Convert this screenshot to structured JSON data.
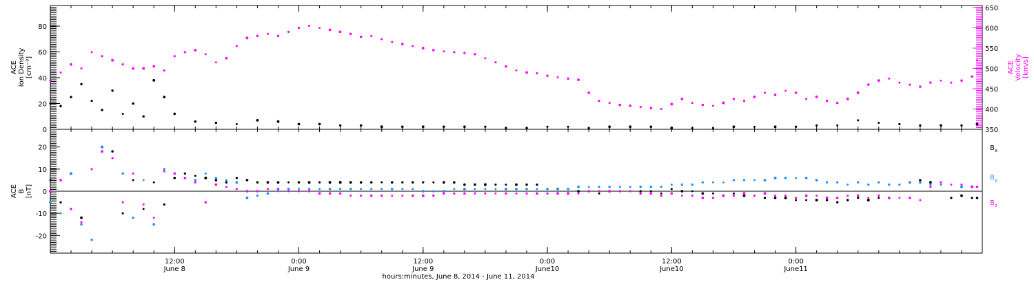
{
  "chart_data": [
    {
      "type": "scatter",
      "panel": "top",
      "y_left_label": [
        "ACE",
        "Ion Density",
        "[cm⁻³]"
      ],
      "y_right_label": [
        "ACE",
        "Velocity",
        "[km/s]"
      ],
      "y_left_range": [
        0,
        96
      ],
      "y_left_ticks": [
        "0",
        "20",
        "40",
        "60",
        "80"
      ],
      "y_right_range": [
        350,
        655
      ],
      "y_right_ticks": [
        "350",
        "400",
        "450",
        "500",
        "550",
        "600",
        "650"
      ],
      "x_range_hours": [
        0,
        90
      ],
      "series": [
        {
          "color": "#000000",
          "axis": "left",
          "x": [
            0,
            1,
            2,
            3,
            4,
            5,
            6,
            7,
            8,
            9,
            10,
            11,
            12,
            14,
            16,
            18,
            20,
            22,
            24,
            26,
            28,
            30,
            32,
            34,
            36,
            38,
            40,
            42,
            44,
            46,
            48,
            50,
            52,
            54,
            56,
            58,
            60,
            62,
            64,
            66,
            68,
            70,
            72,
            74,
            76,
            78,
            80,
            82,
            84,
            86,
            88,
            89.5
          ],
          "y": [
            20,
            18,
            25,
            35,
            22,
            15,
            30,
            12,
            20,
            10,
            38,
            25,
            12,
            6,
            5,
            4,
            7,
            6,
            4,
            4,
            3,
            3,
            2,
            2,
            2,
            2,
            2,
            2,
            1,
            1,
            2,
            2,
            1,
            2,
            2,
            2,
            1,
            1,
            1,
            2,
            2,
            2,
            2,
            3,
            3,
            7,
            5,
            4,
            3,
            3,
            3,
            4
          ]
        },
        {
          "color": "#ff00ff",
          "axis": "right",
          "x": [
            0,
            1,
            2,
            3,
            4,
            5,
            6,
            7,
            8,
            9,
            10,
            11,
            12,
            13,
            14,
            15,
            16,
            17,
            18,
            19,
            20,
            21,
            22,
            23,
            24,
            25,
            26,
            27,
            28,
            29,
            30,
            31,
            32,
            33,
            34,
            35,
            36,
            37,
            38,
            39,
            40,
            41,
            42,
            43,
            44,
            45,
            46,
            47,
            48,
            49,
            50,
            51,
            52,
            53,
            54,
            55,
            56,
            57,
            58,
            59,
            60,
            61,
            62,
            63,
            64,
            65,
            66,
            67,
            68,
            69,
            70,
            71,
            72,
            73,
            74,
            75,
            76,
            77,
            78,
            79,
            80,
            81,
            82,
            83,
            84,
            85,
            86,
            87,
            88,
            89,
            89.5
          ],
          "y": [
            470,
            490,
            510,
            500,
            540,
            530,
            520,
            510,
            500,
            500,
            505,
            495,
            530,
            540,
            545,
            535,
            515,
            525,
            555,
            575,
            580,
            585,
            580,
            590,
            600,
            605,
            600,
            595,
            590,
            585,
            578,
            580,
            572,
            565,
            560,
            555,
            550,
            545,
            542,
            540,
            538,
            535,
            525,
            515,
            505,
            495,
            490,
            488,
            482,
            478,
            475,
            472,
            440,
            420,
            415,
            410,
            408,
            405,
            402,
            400,
            412,
            425,
            415,
            410,
            408,
            415,
            425,
            420,
            430,
            440,
            435,
            445,
            440,
            425,
            430,
            420,
            415,
            425,
            440,
            460,
            470,
            475,
            465,
            460,
            455,
            465,
            470,
            465,
            470,
            480,
            520
          ]
        }
      ]
    },
    {
      "type": "scatter",
      "panel": "bottom",
      "y_label": [
        "ACE",
        "B",
        "[nT]"
      ],
      "y_range": [
        -28,
        28
      ],
      "y_ticks": [
        "-20",
        "-10",
        "0",
        "10",
        "20"
      ],
      "x_range_hours": [
        0,
        90
      ],
      "zero_line": true,
      "legend_side": "right",
      "series": [
        {
          "name": "Bx",
          "color": "#000000",
          "x": [
            0,
            1,
            2,
            3,
            4,
            5,
            6,
            7,
            8,
            9,
            10,
            11,
            12,
            13,
            14,
            15,
            16,
            17,
            18,
            19,
            20,
            21,
            22,
            23,
            24,
            25,
            26,
            27,
            28,
            29,
            30,
            31,
            32,
            33,
            34,
            35,
            36,
            37,
            38,
            39,
            40,
            41,
            42,
            43,
            44,
            45,
            46,
            47,
            48,
            49,
            50,
            51,
            52,
            53,
            54,
            55,
            56,
            57,
            58,
            59,
            60,
            61,
            62,
            63,
            64,
            65,
            66,
            67,
            68,
            69,
            70,
            71,
            72,
            73,
            74,
            75,
            76,
            77,
            78,
            79,
            80,
            81,
            82,
            83,
            84,
            85,
            86,
            87,
            88,
            89,
            89.5
          ],
          "y": [
            5,
            -5,
            8,
            -12,
            10,
            20,
            18,
            -10,
            5,
            -8,
            4,
            -6,
            6,
            8,
            7,
            6,
            5,
            4,
            6,
            5,
            4,
            4,
            4,
            4,
            4,
            4,
            4,
            4,
            4,
            4,
            4,
            4,
            4,
            4,
            4,
            4,
            4,
            4,
            4,
            4,
            3,
            3,
            3,
            3,
            3,
            3,
            3,
            3,
            1,
            1,
            1,
            0,
            0,
            -1,
            0,
            0,
            0,
            0,
            0,
            -1,
            1,
            0,
            0,
            -1,
            -1,
            -2,
            -1,
            -2,
            -2,
            -3,
            -3,
            -3,
            -4,
            -4,
            -4,
            -4,
            -5,
            -4,
            -3,
            -4,
            -3,
            -3,
            3,
            4,
            5,
            4,
            3,
            -3,
            -2,
            -3,
            -3
          ]
        },
        {
          "name": "By",
          "color": "#1e90ff",
          "x": [
            0,
            1,
            2,
            3,
            4,
            5,
            6,
            7,
            8,
            9,
            10,
            11,
            12,
            13,
            14,
            15,
            16,
            17,
            18,
            19,
            20,
            21,
            22,
            23,
            24,
            25,
            26,
            27,
            28,
            29,
            30,
            31,
            32,
            33,
            34,
            35,
            36,
            37,
            38,
            39,
            40,
            41,
            42,
            43,
            44,
            45,
            46,
            47,
            48,
            49,
            50,
            51,
            52,
            53,
            54,
            55,
            56,
            57,
            58,
            59,
            60,
            61,
            62,
            63,
            64,
            65,
            66,
            67,
            68,
            69,
            70,
            71,
            72,
            73,
            74,
            75,
            76,
            77,
            78,
            79,
            80,
            81,
            82,
            83,
            84,
            85,
            86,
            87,
            88,
            89,
            89.5
          ],
          "y": [
            -5,
            -10,
            8,
            -15,
            -22,
            20,
            15,
            8,
            -12,
            5,
            -15,
            10,
            8,
            6,
            5,
            8,
            6,
            5,
            4,
            -3,
            -2,
            -1,
            0,
            1,
            1,
            1,
            1,
            1,
            1,
            1,
            1,
            1,
            1,
            1,
            1,
            1,
            0,
            0,
            0,
            1,
            1,
            1,
            1,
            1,
            1,
            1,
            1,
            1,
            1,
            1,
            1,
            2,
            2,
            2,
            2,
            2,
            2,
            2,
            2,
            2,
            3,
            3,
            3,
            4,
            4,
            4,
            5,
            5,
            5,
            5,
            6,
            6,
            6,
            6,
            5,
            4,
            4,
            3,
            4,
            3,
            4,
            3,
            3,
            4,
            4,
            3,
            3,
            3,
            2,
            2,
            2
          ]
        },
        {
          "name": "Bz",
          "color": "#ff00ff",
          "x": [
            0,
            1,
            2,
            3,
            4,
            5,
            6,
            7,
            8,
            9,
            10,
            11,
            12,
            13,
            14,
            15,
            16,
            17,
            18,
            19,
            20,
            21,
            22,
            23,
            24,
            25,
            26,
            27,
            28,
            29,
            30,
            31,
            32,
            33,
            34,
            35,
            36,
            37,
            38,
            39,
            40,
            41,
            42,
            43,
            44,
            45,
            46,
            47,
            48,
            49,
            50,
            51,
            52,
            53,
            54,
            55,
            56,
            57,
            58,
            59,
            60,
            61,
            62,
            63,
            64,
            65,
            66,
            67,
            68,
            69,
            70,
            71,
            72,
            73,
            74,
            75,
            76,
            77,
            78,
            79,
            80,
            81,
            82,
            83,
            84,
            85,
            86,
            87,
            88,
            89,
            89.5
          ],
          "y": [
            0,
            5,
            -8,
            -14,
            10,
            18,
            15,
            -5,
            8,
            -6,
            -12,
            9,
            8,
            6,
            4,
            -5,
            3,
            2,
            1,
            0,
            0,
            1,
            1,
            0,
            0,
            0,
            -1,
            -1,
            -1,
            -2,
            -2,
            -2,
            -2,
            -2,
            -2,
            -2,
            -2,
            -2,
            -1,
            -1,
            -1,
            -1,
            -1,
            -1,
            -1,
            -1,
            -1,
            -1,
            -1,
            -1,
            -1,
            -1,
            0,
            0,
            0,
            0,
            0,
            -1,
            -1,
            -2,
            -1,
            -2,
            -2,
            -3,
            -3,
            -2,
            -2,
            -1,
            -2,
            -1,
            -2,
            -2,
            -3,
            -2,
            -2,
            -3,
            -3,
            -2,
            -2,
            -3,
            -2,
            -3,
            -3,
            -3,
            -4,
            2,
            4,
            3,
            3,
            2,
            2
          ]
        }
      ]
    }
  ],
  "x_axis": {
    "major_hours": [
      12,
      24,
      36,
      48,
      60,
      72,
      84
    ],
    "time_labels": [
      "12:00",
      "0:00",
      "12:00",
      "0:00",
      "12:00",
      "0:00"
    ],
    "date_labels": [
      "June 8",
      "June 9",
      "June 9",
      "June10",
      "June10",
      "June11"
    ],
    "title": "hours:minutes, June  8, 2014 - June 11, 2014"
  },
  "legend": [
    "B",
    "B",
    "B"
  ],
  "legend_subs": [
    "x",
    "y",
    "z"
  ],
  "legend_colors": [
    "#000000",
    "#1e90ff",
    "#ff00ff"
  ]
}
